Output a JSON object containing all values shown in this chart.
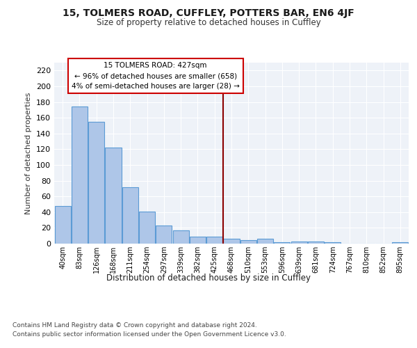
{
  "title1": "15, TOLMERS ROAD, CUFFLEY, POTTERS BAR, EN6 4JF",
  "title2": "Size of property relative to detached houses in Cuffley",
  "xlabel": "Distribution of detached houses by size in Cuffley",
  "ylabel": "Number of detached properties",
  "bar_labels": [
    "40sqm",
    "83sqm",
    "126sqm",
    "168sqm",
    "211sqm",
    "254sqm",
    "297sqm",
    "339sqm",
    "382sqm",
    "425sqm",
    "468sqm",
    "510sqm",
    "553sqm",
    "596sqm",
    "639sqm",
    "681sqm",
    "724sqm",
    "767sqm",
    "810sqm",
    "852sqm",
    "895sqm"
  ],
  "bar_values": [
    48,
    174,
    155,
    122,
    72,
    41,
    23,
    17,
    9,
    9,
    6,
    4,
    6,
    2,
    3,
    3,
    2,
    0,
    0,
    0,
    2
  ],
  "bar_color": "#aec6e8",
  "bar_edge_color": "#5b9bd5",
  "annotation_line1": "15 TOLMERS ROAD: 427sqm",
  "annotation_line2": "← 96% of detached houses are smaller (658)",
  "annotation_line3": "4% of semi-detached houses are larger (28) →",
  "vline_color": "#8b0000",
  "annotation_box_color": "#ffffff",
  "annotation_box_edge": "#cc0000",
  "ylim": [
    0,
    230
  ],
  "yticks": [
    0,
    20,
    40,
    60,
    80,
    100,
    120,
    140,
    160,
    180,
    200,
    220
  ],
  "background_color": "#eef2f8",
  "footer1": "Contains HM Land Registry data © Crown copyright and database right 2024.",
  "footer2": "Contains public sector information licensed under the Open Government Licence v3.0."
}
